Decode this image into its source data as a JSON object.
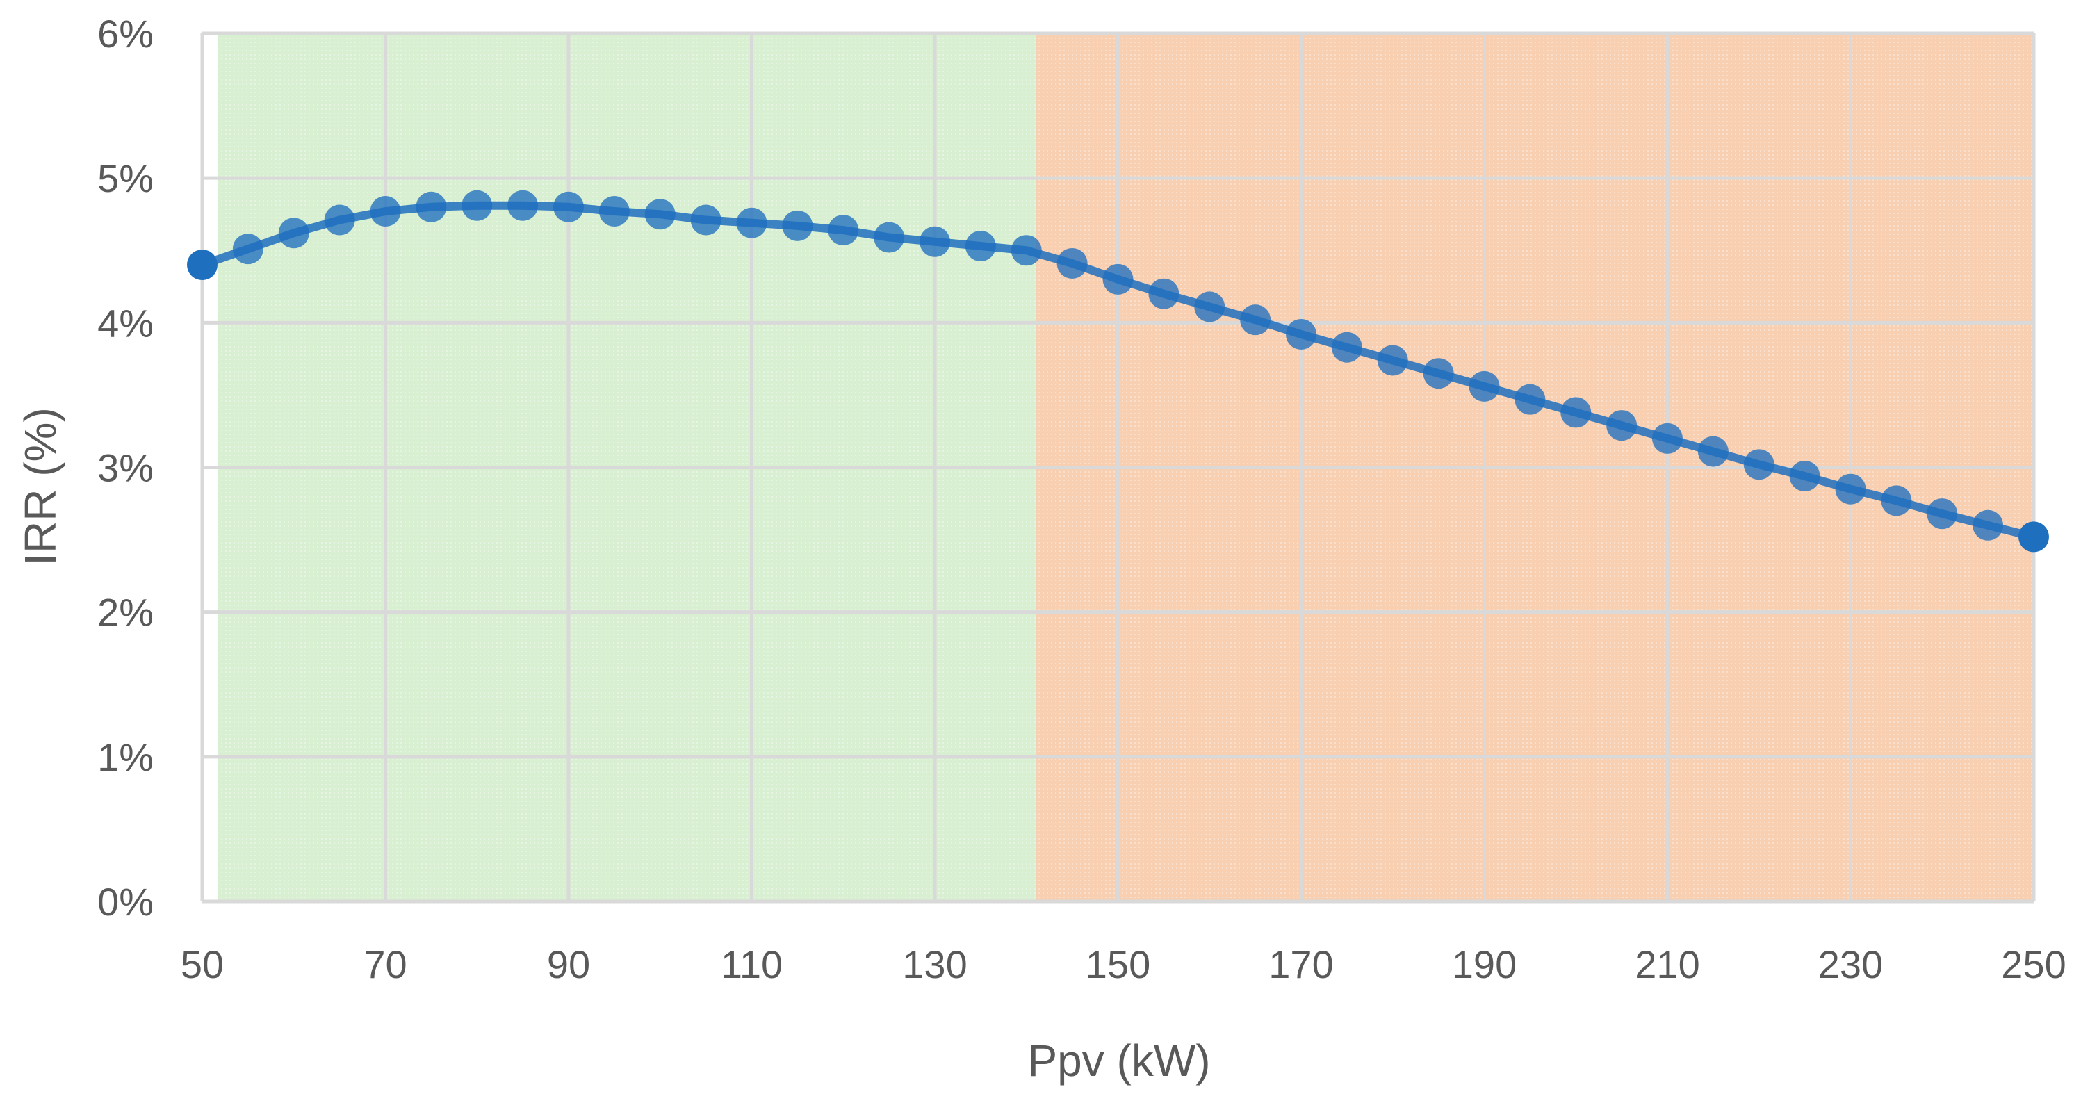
{
  "chart_data": {
    "type": "line",
    "title": "",
    "xlabel": "Ppv (kW)",
    "ylabel": "IRR (%)",
    "xlim": [
      50,
      250
    ],
    "ylim": [
      0,
      6
    ],
    "x_ticks": [
      "50",
      "70",
      "90",
      "110",
      "130",
      "150",
      "170",
      "190",
      "210",
      "230",
      "250"
    ],
    "y_ticks": [
      "0%",
      "1%",
      "2%",
      "3%",
      "4%",
      "5%",
      "6%"
    ],
    "grid": true,
    "shaded_regions": [
      {
        "name": "feasible-region",
        "x_range": [
          50,
          141
        ],
        "color": "#d9efd1"
      },
      {
        "name": "oversized-region",
        "x_range": [
          141,
          250
        ],
        "color": "#f8cfb0"
      }
    ],
    "series": [
      {
        "name": "IRR",
        "color": "#1f6fbf",
        "x": [
          50,
          55,
          60,
          65,
          70,
          75,
          80,
          85,
          90,
          95,
          100,
          105,
          110,
          115,
          120,
          125,
          130,
          135,
          140,
          145,
          150,
          155,
          160,
          165,
          170,
          175,
          180,
          185,
          190,
          195,
          200,
          205,
          210,
          215,
          220,
          225,
          230,
          235,
          240,
          245,
          250
        ],
        "y": [
          4.4,
          4.51,
          4.62,
          4.71,
          4.77,
          4.8,
          4.81,
          4.81,
          4.8,
          4.77,
          4.75,
          4.71,
          4.69,
          4.67,
          4.64,
          4.59,
          4.56,
          4.53,
          4.5,
          4.41,
          4.3,
          4.2,
          4.11,
          4.02,
          3.92,
          3.83,
          3.74,
          3.65,
          3.56,
          3.47,
          3.38,
          3.29,
          3.2,
          3.11,
          3.02,
          2.94,
          2.85,
          2.77,
          2.68,
          2.6,
          2.52
        ]
      }
    ]
  }
}
